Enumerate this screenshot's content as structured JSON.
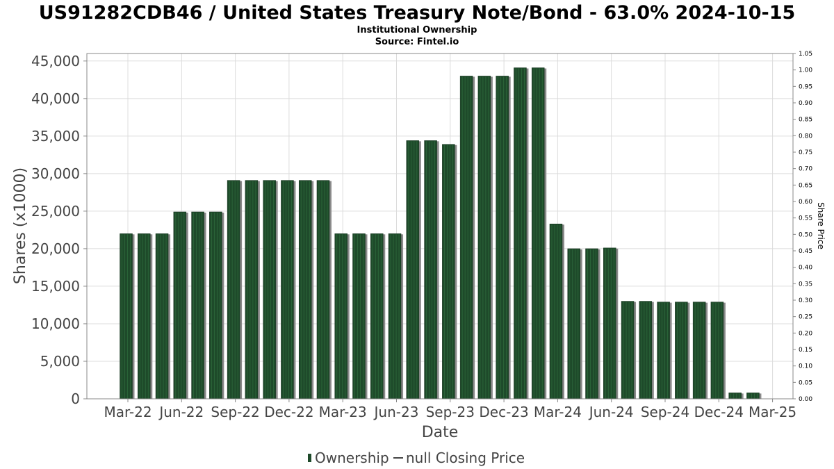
{
  "header": {
    "title": "US91282CDB46 / United States Treasury Note/Bond - 63.0% 2024-10-15",
    "subtitle_1": "Institutional Ownership",
    "subtitle_2": "Source: Fintel.io"
  },
  "legend": {
    "ownership_label": "Ownership",
    "price_label": "null Closing Price"
  },
  "colors": {
    "bar": "#1e4a2a",
    "bar_stripe": "#2e6a3c",
    "bar_shadow": "#8a8a8a",
    "grid": "#dcdcdc",
    "axis": "#888888"
  },
  "chart_data": {
    "type": "bar",
    "xlabel": "Date",
    "ylabel": "Shares (x1000)",
    "y2label": "Share Price",
    "ylim": [
      0,
      46000
    ],
    "y2lim": [
      0,
      1.05
    ],
    "yticks": [
      0,
      5000,
      10000,
      15000,
      20000,
      25000,
      30000,
      35000,
      40000,
      45000
    ],
    "ytick_labels": [
      "0",
      "5,000",
      "10,000",
      "15,000",
      "20,000",
      "25,000",
      "30,000",
      "35,000",
      "40,000",
      "45,000"
    ],
    "y2ticks": [
      "0.00",
      "0.05",
      "0.10",
      "0.15",
      "0.20",
      "0.25",
      "0.30",
      "0.35",
      "0.40",
      "0.45",
      "0.50",
      "0.55",
      "0.60",
      "0.65",
      "0.70",
      "0.75",
      "0.80",
      "0.85",
      "0.90",
      "0.95",
      "1.00",
      "1.05"
    ],
    "x_tick_labels": [
      "Mar-22",
      "Jun-22",
      "Sep-22",
      "Dec-22",
      "Mar-23",
      "Jun-23",
      "Sep-23",
      "Dec-23",
      "Mar-24",
      "Jun-24",
      "Sep-24",
      "Dec-24",
      "Mar-25"
    ],
    "values": [
      22000,
      22000,
      22000,
      24900,
      24900,
      24900,
      29100,
      29100,
      29100,
      29100,
      29100,
      29100,
      22000,
      22000,
      22000,
      22000,
      34400,
      34400,
      33900,
      43000,
      43000,
      43000,
      44100,
      44100,
      23300,
      20000,
      20000,
      20100,
      13000,
      13000,
      12900,
      12900,
      12900,
      12900,
      800,
      800
    ],
    "grid": true,
    "legend_position": "bottom-center"
  }
}
